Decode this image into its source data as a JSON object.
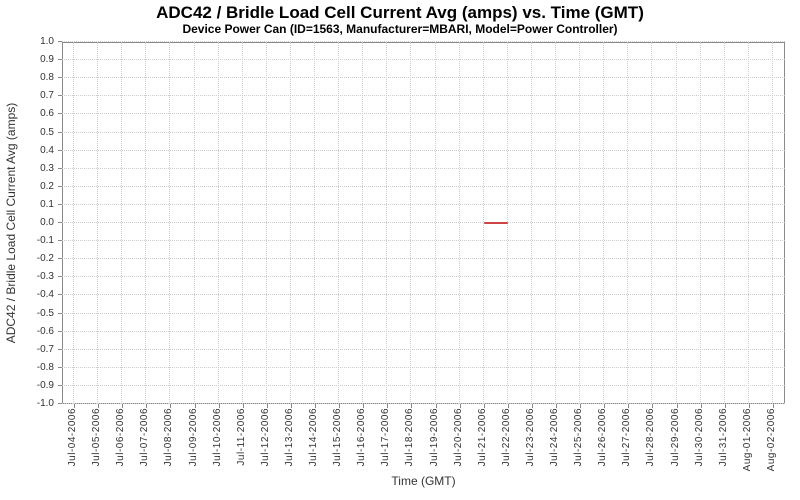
{
  "chart_data": {
    "type": "line",
    "title": "ADC42 / Bridle Load Cell Current Avg (amps) vs. Time (GMT)",
    "subtitle": "Device Power Can (ID=1563, Manufacturer=MBARI, Model=Power Controller)",
    "xlabel": "Time (GMT)",
    "ylabel": "ADC42 / Bridle Load Cell Current Avg (amps)",
    "ylim": [
      -1.0,
      1.0
    ],
    "y_tick_step": 0.1,
    "x_ticks": [
      "Jul-04-2006",
      "Jul-05-2006",
      "Jul-06-2006",
      "Jul-07-2006",
      "Jul-08-2006",
      "Jul-09-2006",
      "Jul-10-2006",
      "Jul-11-2006",
      "Jul-12-2006",
      "Jul-13-2006",
      "Jul-14-2006",
      "Jul-15-2006",
      "Jul-16-2006",
      "Jul-17-2006",
      "Jul-18-2006",
      "Jul-19-2006",
      "Jul-20-2006",
      "Jul-21-2006",
      "Jul-22-2006",
      "Jul-23-2006",
      "Jul-24-2006",
      "Jul-25-2006",
      "Jul-26-2006",
      "Jul-27-2006",
      "Jul-28-2006",
      "Jul-29-2006",
      "Jul-30-2006",
      "Jul-31-2006",
      "Aug-01-2006",
      "Aug-02-2006"
    ],
    "grid": true,
    "legend": false,
    "colors": {
      "background": "#ffffff",
      "plot_border": "#8a8a8a",
      "gridline": "#cccccc",
      "tick": "#8a8a8a",
      "tick_label": "#333333",
      "title": "#000000"
    },
    "series": [
      {
        "name": "ADC42 / Bridle Load Cell Current Avg",
        "color": "#cc4444",
        "points": [
          {
            "x": "Jul-21-2006",
            "y": 0.0
          },
          {
            "x": "Jul-22-2006",
            "y": 0.0
          }
        ]
      }
    ]
  }
}
